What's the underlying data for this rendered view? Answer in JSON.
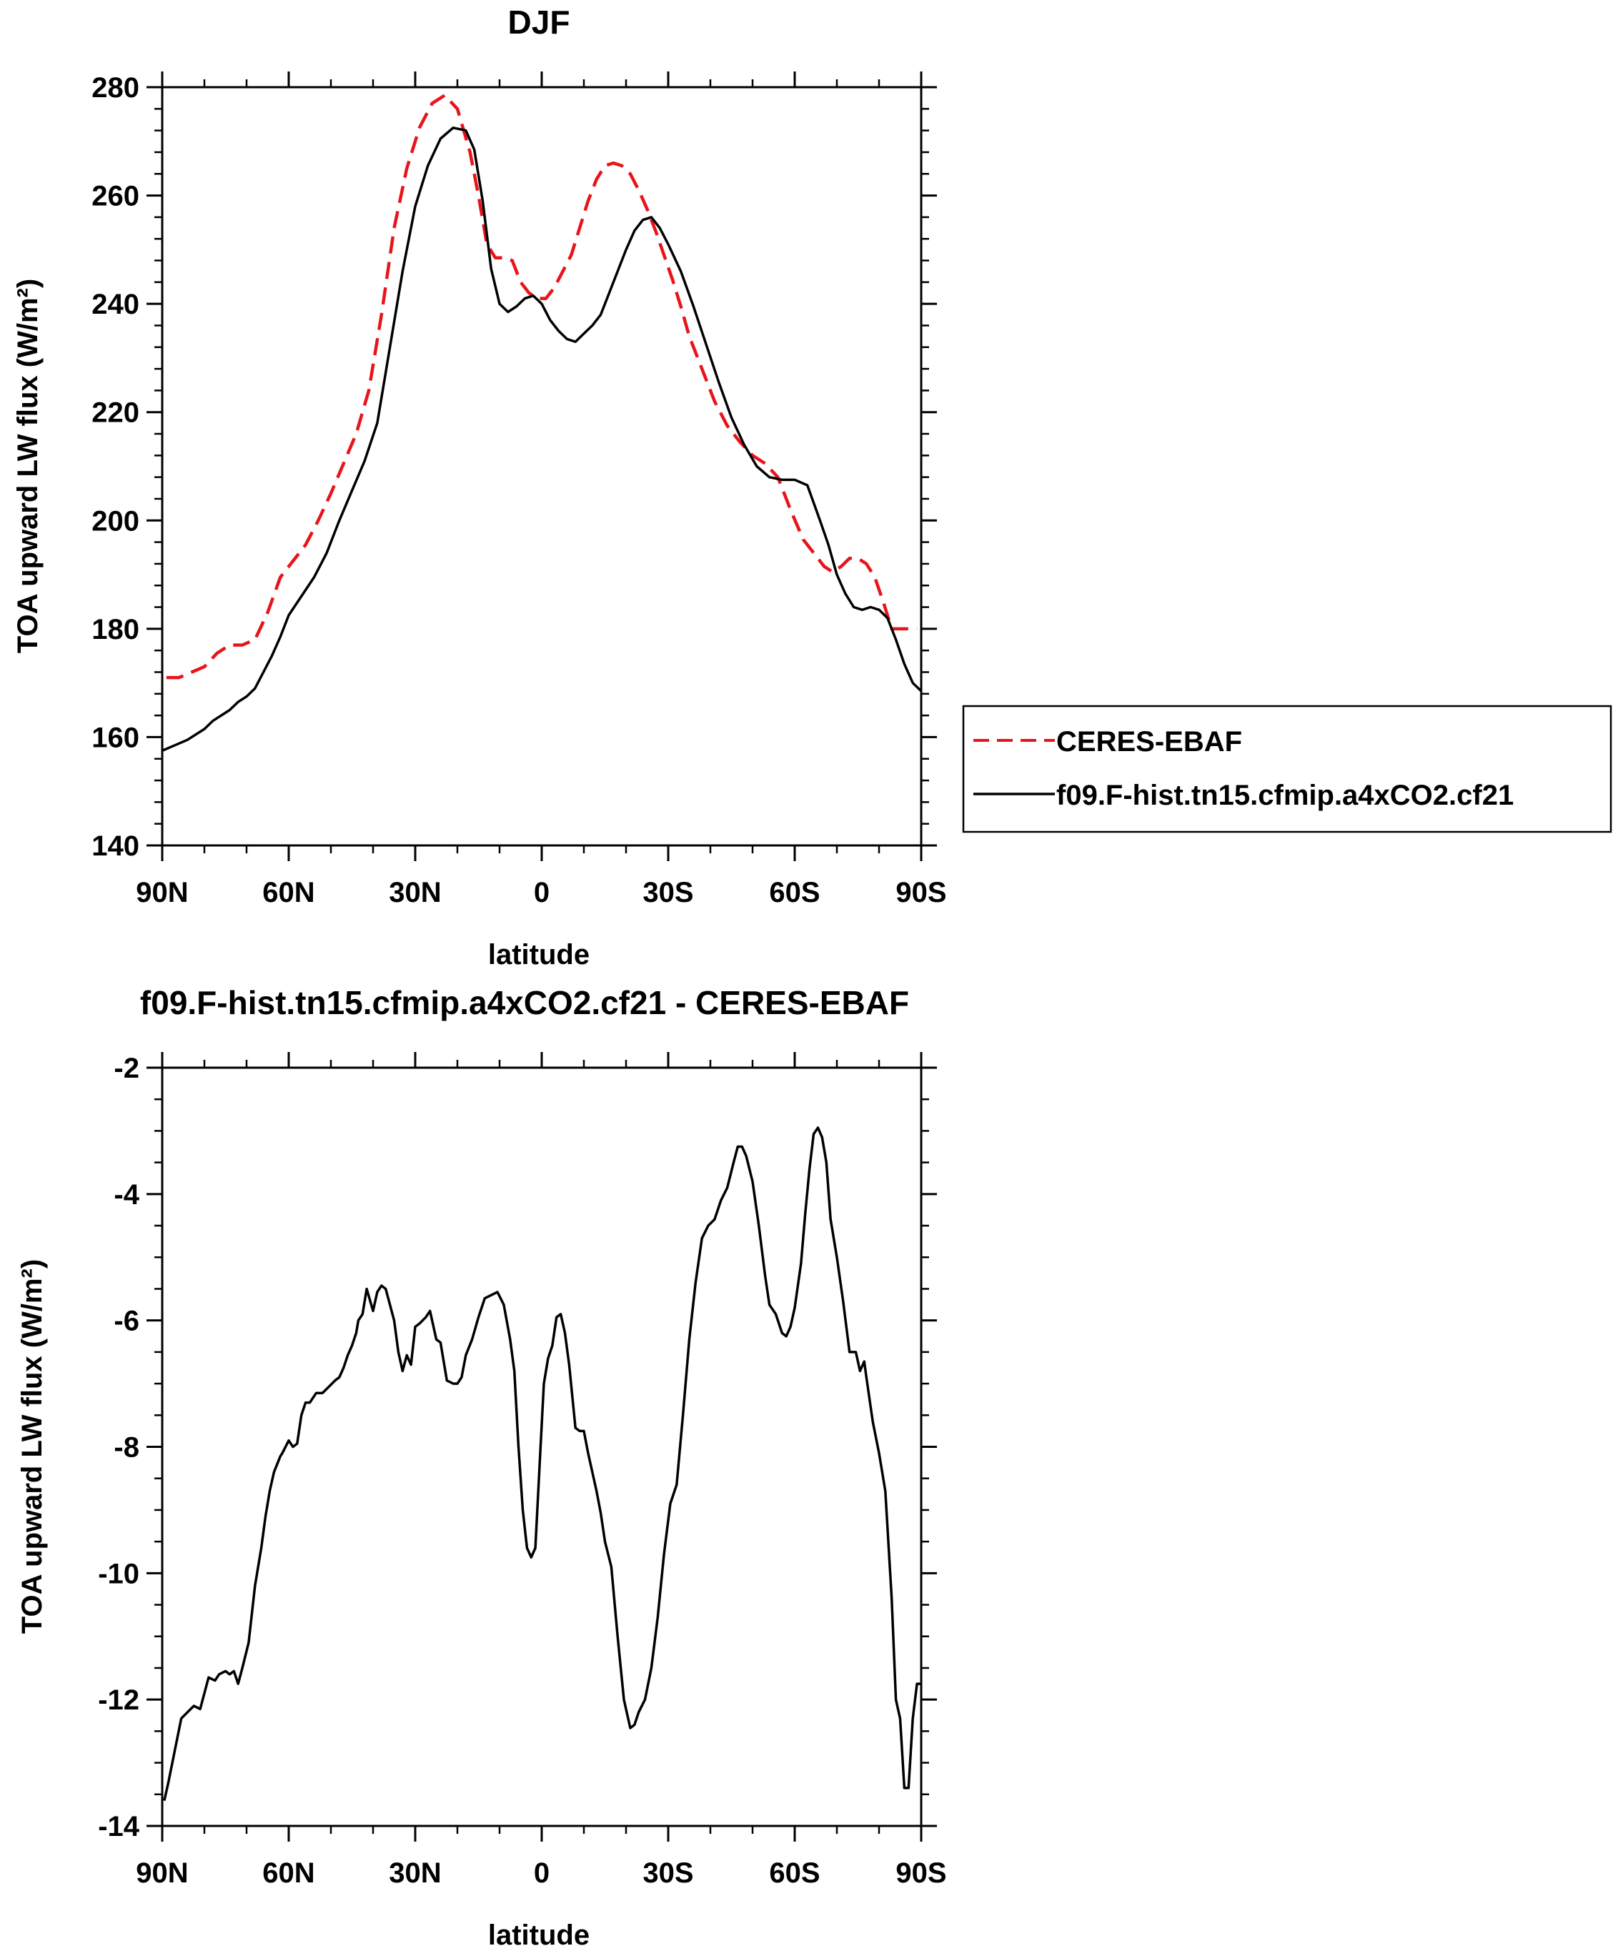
{
  "chart_data": [
    {
      "type": "line",
      "title": "DJF",
      "xlabel": "latitude",
      "ylabel": "TOA upward LW flux (W/m²)",
      "xlim": [
        90,
        -90
      ],
      "ylim": [
        140,
        280
      ],
      "x_ticks": [
        {
          "value": 90,
          "label": "90N"
        },
        {
          "value": 60,
          "label": "60N"
        },
        {
          "value": 30,
          "label": "30N"
        },
        {
          "value": 0,
          "label": "0"
        },
        {
          "value": -30,
          "label": "30S"
        },
        {
          "value": -60,
          "label": "60S"
        },
        {
          "value": -90,
          "label": "90S"
        }
      ],
      "y_ticks": [
        "140",
        "160",
        "180",
        "200",
        "220",
        "240",
        "260",
        "280"
      ],
      "legend_position": "right",
      "grid": false,
      "series": [
        {
          "name": "CERES-EBAF",
          "color": "#e8141b",
          "dash": "dashed",
          "x": [
            89,
            86,
            83,
            80,
            77,
            74,
            71,
            68,
            65,
            62,
            59,
            56,
            53,
            50,
            47,
            44,
            41,
            38,
            35,
            32,
            29,
            26,
            23,
            20,
            17,
            15,
            13,
            11,
            9,
            7,
            5,
            3,
            1,
            -1,
            -3,
            -5,
            -7,
            -9,
            -11,
            -13,
            -15,
            -17,
            -19,
            -21,
            -23,
            -25,
            -27,
            -29,
            -31,
            -33,
            -35,
            -38,
            -41,
            -44,
            -47,
            -50,
            -53,
            -56,
            -59,
            -62,
            -65,
            -67,
            -69,
            -71,
            -73,
            -75,
            -77,
            -79,
            -81,
            -83,
            -85,
            -87,
            -89
          ],
          "y": [
            171.0,
            171.0,
            172.0,
            173.0,
            175.5,
            177.0,
            177.0,
            178.0,
            183.0,
            189.5,
            192.5,
            195.5,
            200.0,
            205.0,
            210.5,
            216.0,
            224.0,
            238.0,
            254.0,
            265.0,
            272.5,
            277.0,
            278.5,
            276.0,
            268.0,
            260.0,
            251.0,
            248.5,
            248.5,
            248.0,
            244.0,
            242.0,
            241.0,
            241.0,
            243.0,
            246.0,
            249.0,
            254.0,
            259.0,
            263.0,
            265.5,
            266.0,
            265.5,
            264.0,
            261.0,
            257.5,
            253.5,
            249.0,
            244.5,
            239.5,
            234.0,
            228.0,
            222.0,
            217.5,
            214.5,
            212.0,
            210.5,
            208.0,
            202.0,
            196.5,
            193.5,
            191.5,
            190.5,
            191.5,
            193.0,
            193.0,
            192.0,
            189.5,
            185.0,
            180.0,
            180.0,
            180.0,
            180.0
          ]
        },
        {
          "name": "f09.F-hist.tn15.cfmip.a4xCO2.cf21",
          "color": "#000000",
          "dash": "solid",
          "x": [
            90,
            87,
            84,
            82,
            80,
            78,
            76,
            74,
            72,
            70,
            68,
            66,
            64,
            62,
            60,
            57,
            54,
            51,
            48,
            45,
            42,
            39,
            36,
            33,
            30,
            27,
            24,
            21,
            18,
            16,
            14,
            12,
            10,
            8,
            6,
            4,
            2,
            0,
            -2,
            -4,
            -6,
            -8,
            -10,
            -12,
            -14,
            -16,
            -18,
            -20,
            -22,
            -24,
            -26,
            -28,
            -30,
            -33,
            -36,
            -39,
            -42,
            -45,
            -48,
            -51,
            -54,
            -57,
            -60,
            -63,
            -66,
            -68,
            -70,
            -72,
            -74,
            -76,
            -78,
            -80,
            -82,
            -84,
            -86,
            -88,
            -90
          ],
          "y": [
            157.5,
            158.5,
            159.5,
            160.5,
            161.5,
            163.0,
            164.0,
            165.0,
            166.5,
            167.5,
            169.0,
            172.0,
            175.0,
            178.5,
            182.5,
            186.0,
            189.5,
            194.0,
            200.0,
            205.5,
            211.0,
            218.0,
            232.0,
            246.0,
            258.0,
            265.5,
            270.5,
            272.5,
            272.0,
            268.5,
            259.0,
            246.5,
            240.0,
            238.5,
            239.5,
            241.0,
            241.5,
            240.0,
            237.0,
            235.0,
            233.5,
            233.0,
            234.5,
            236.0,
            238.0,
            242.0,
            246.0,
            250.0,
            253.5,
            255.5,
            256.0,
            254.0,
            251.0,
            246.0,
            239.5,
            232.5,
            225.5,
            219.0,
            214.0,
            210.0,
            208.0,
            207.5,
            207.5,
            206.5,
            200.0,
            195.5,
            190.0,
            186.5,
            184.0,
            183.5,
            184.0,
            183.5,
            182.0,
            178.0,
            173.5,
            170.0,
            168.5
          ]
        }
      ]
    },
    {
      "type": "line",
      "title": "f09.F-hist.tn15.cfmip.a4xCO2.cf21 - CERES-EBAF",
      "xlabel": "latitude",
      "ylabel": "TOA upward LW flux (W/m²)",
      "xlim": [
        90,
        -90
      ],
      "ylim": [
        -14,
        -2
      ],
      "x_ticks": [
        {
          "value": 90,
          "label": "90N"
        },
        {
          "value": 60,
          "label": "60N"
        },
        {
          "value": 30,
          "label": "30N"
        },
        {
          "value": 0,
          "label": "0"
        },
        {
          "value": -30,
          "label": "30S"
        },
        {
          "value": -60,
          "label": "60S"
        },
        {
          "value": -90,
          "label": "90S"
        }
      ],
      "y_ticks": [
        "-14",
        "-12",
        "-10",
        "-8",
        "-6",
        "-4",
        "-2"
      ],
      "grid": false,
      "series": [
        {
          "color": "#000000",
          "dash": "solid",
          "x": [
            89.5,
            88.5,
            87,
            85.5,
            84,
            82.5,
            81,
            80,
            79,
            77.5,
            76.5,
            75,
            74,
            73,
            72,
            71,
            69.5,
            68,
            66.5,
            65.5,
            64.5,
            63.5,
            62,
            61.5,
            60,
            59,
            58,
            57,
            56,
            55,
            53.5,
            52,
            50.5,
            49,
            48,
            47,
            46,
            45,
            44,
            43.5,
            42.5,
            41.5,
            40,
            39,
            38,
            37,
            36,
            35,
            34,
            33,
            32,
            31,
            30,
            29,
            27.5,
            26.5,
            25,
            24,
            22.5,
            21,
            20,
            19,
            18,
            16.5,
            15,
            13.5,
            12,
            10.5,
            9,
            7.5,
            6.5,
            5.5,
            4.5,
            3.5,
            2.5,
            1.5,
            0.5,
            -0.5,
            -1.5,
            -2.5,
            -3.5,
            -4.5,
            -5.5,
            -6.5,
            -8,
            -9,
            -10,
            -11,
            -12,
            -13,
            -14,
            -15,
            -16.5,
            -18,
            -19.5,
            -21,
            -22,
            -23,
            -24.5,
            -26,
            -27.5,
            -29,
            -30.5,
            -32,
            -33.5,
            -35,
            -36.5,
            -38,
            -39.5,
            -41,
            -42.5,
            -44,
            -45.5,
            -46.5,
            -47.5,
            -48.5,
            -50,
            -51.5,
            -53,
            -54,
            -55.5,
            -57,
            -58,
            -59,
            -60,
            -61.5,
            -62.5,
            -63.5,
            -64.5,
            -65.5,
            -66.5,
            -67.5,
            -68.5,
            -70,
            -71.5,
            -73,
            -74.5,
            -75.5,
            -76.5,
            -77,
            -78.5,
            -80,
            -81.5,
            -83,
            -84,
            -85,
            -86,
            -87,
            -88,
            -89,
            -90
          ],
          "y": [
            -13.6,
            -13.3,
            -12.8,
            -12.3,
            -12.2,
            -12.1,
            -12.15,
            -11.9,
            -11.65,
            -11.7,
            -11.6,
            -11.55,
            -11.6,
            -11.55,
            -11.75,
            -11.5,
            -11.1,
            -10.2,
            -9.6,
            -9.1,
            -8.7,
            -8.4,
            -8.15,
            -8.1,
            -7.9,
            -8.0,
            -7.95,
            -7.5,
            -7.3,
            -7.3,
            -7.15,
            -7.15,
            -7.05,
            -6.95,
            -6.9,
            -6.75,
            -6.55,
            -6.4,
            -6.2,
            -6.0,
            -5.9,
            -5.5,
            -5.85,
            -5.55,
            -5.45,
            -5.5,
            -5.75,
            -6.0,
            -6.5,
            -6.8,
            -6.55,
            -6.7,
            -6.1,
            -6.05,
            -5.95,
            -5.85,
            -6.3,
            -6.35,
            -6.95,
            -7.0,
            -7.0,
            -6.9,
            -6.55,
            -6.3,
            -5.95,
            -5.65,
            -5.6,
            -5.55,
            -5.75,
            -6.3,
            -6.8,
            -8.0,
            -9.0,
            -9.6,
            -9.75,
            -9.6,
            -8.3,
            -7.0,
            -6.6,
            -6.4,
            -5.95,
            -5.9,
            -6.2,
            -6.7,
            -7.7,
            -7.75,
            -7.75,
            -8.1,
            -8.4,
            -8.7,
            -9.05,
            -9.5,
            -9.9,
            -11.0,
            -12.0,
            -12.45,
            -12.4,
            -12.2,
            -12.0,
            -11.5,
            -10.7,
            -9.7,
            -8.9,
            -8.6,
            -7.5,
            -6.3,
            -5.4,
            -4.7,
            -4.5,
            -4.4,
            -4.1,
            -3.9,
            -3.5,
            -3.25,
            -3.25,
            -3.4,
            -3.8,
            -4.5,
            -5.3,
            -5.75,
            -5.9,
            -6.2,
            -6.25,
            -6.1,
            -5.8,
            -5.1,
            -4.3,
            -3.6,
            -3.05,
            -2.95,
            -3.1,
            -3.5,
            -4.4,
            -5.0,
            -5.7,
            -6.5,
            -6.5,
            -6.8,
            -6.65,
            -6.9,
            -7.6,
            -8.1,
            -8.7,
            -10.4,
            -12.0,
            -12.3,
            -13.4,
            -13.4,
            -12.3,
            -11.75,
            -11.75
          ]
        }
      ]
    }
  ]
}
